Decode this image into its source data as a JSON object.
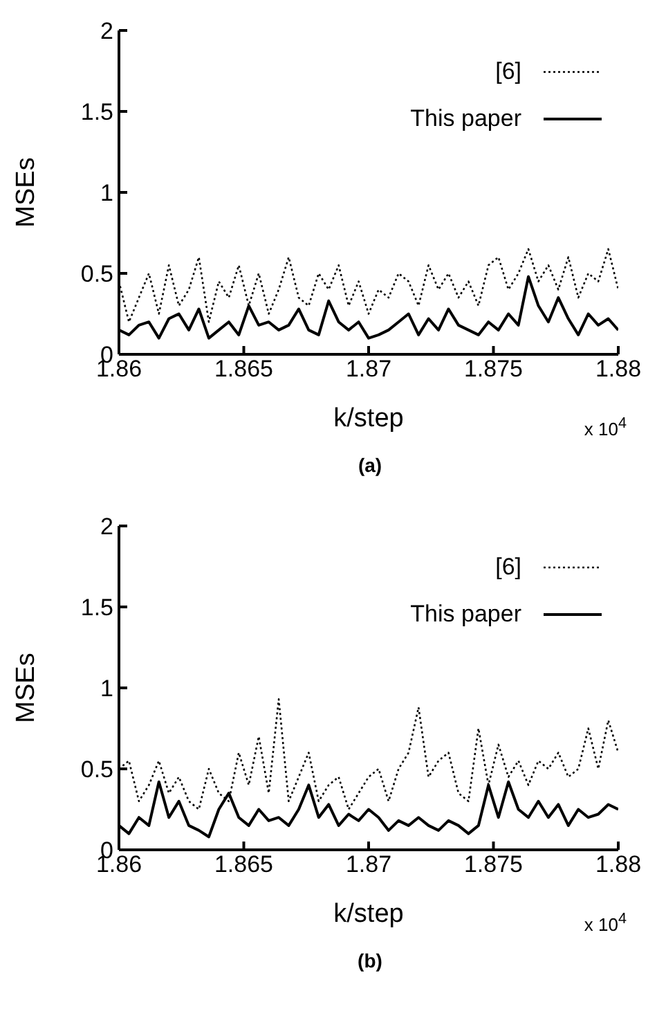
{
  "chart_data": [
    {
      "type": "line",
      "title": "(a)",
      "xlabel": "k/step",
      "ylabel": "MSEs",
      "annotations": [
        "x 10$^{4}$"
      ],
      "x": [
        1.86,
        1.8604,
        1.8608,
        1.8612,
        1.8616,
        1.862,
        1.8624,
        1.8628,
        1.8632,
        1.8636,
        1.864,
        1.8644,
        1.8648,
        1.8652,
        1.8656,
        1.866,
        1.8664,
        1.8668,
        1.8672,
        1.8676,
        1.868,
        1.8684,
        1.8688,
        1.8692,
        1.8696,
        1.87,
        1.8704,
        1.8708,
        1.8712,
        1.8716,
        1.872,
        1.8724,
        1.8728,
        1.8732,
        1.8736,
        1.874,
        1.8744,
        1.8748,
        1.8752,
        1.8756,
        1.876,
        1.8764,
        1.8768,
        1.8772,
        1.8776,
        1.878,
        1.8784,
        1.8788,
        1.8792,
        1.8796,
        1.88
      ],
      "xlim": [
        1.86,
        1.88
      ],
      "xticks": [
        1.86,
        1.865,
        1.87,
        1.875,
        1.88
      ],
      "ylim": [
        0,
        2
      ],
      "yticks": [
        0,
        0.5,
        1,
        1.5,
        2
      ],
      "legend": "top right",
      "marker": "none",
      "series": [
        {
          "name": "[6]",
          "color": "#000000",
          "line_style": "dotted",
          "values": [
            0.45,
            0.2,
            0.35,
            0.5,
            0.25,
            0.55,
            0.3,
            0.4,
            0.6,
            0.2,
            0.45,
            0.35,
            0.55,
            0.3,
            0.5,
            0.25,
            0.4,
            0.6,
            0.35,
            0.3,
            0.5,
            0.4,
            0.55,
            0.3,
            0.45,
            0.25,
            0.4,
            0.35,
            0.5,
            0.45,
            0.3,
            0.55,
            0.4,
            0.5,
            0.35,
            0.45,
            0.3,
            0.55,
            0.6,
            0.4,
            0.5,
            0.65,
            0.45,
            0.55,
            0.4,
            0.6,
            0.35,
            0.5,
            0.45,
            0.65,
            0.4
          ]
        },
        {
          "name": "This paper",
          "color": "#000000",
          "line_style": "solid",
          "values": [
            0.15,
            0.12,
            0.18,
            0.2,
            0.1,
            0.22,
            0.25,
            0.15,
            0.28,
            0.1,
            0.15,
            0.2,
            0.12,
            0.3,
            0.18,
            0.2,
            0.15,
            0.18,
            0.28,
            0.15,
            0.12,
            0.33,
            0.2,
            0.15,
            0.2,
            0.1,
            0.12,
            0.15,
            0.2,
            0.25,
            0.12,
            0.22,
            0.15,
            0.28,
            0.18,
            0.15,
            0.12,
            0.2,
            0.15,
            0.25,
            0.18,
            0.48,
            0.3,
            0.2,
            0.35,
            0.22,
            0.12,
            0.25,
            0.18,
            0.22,
            0.15
          ]
        }
      ]
    },
    {
      "type": "line",
      "title": "(b)",
      "xlabel": "k/step",
      "ylabel": "MSEs",
      "annotations": [
        "x 10$^{4}$"
      ],
      "x": [
        1.86,
        1.8604,
        1.8608,
        1.8612,
        1.8616,
        1.862,
        1.8624,
        1.8628,
        1.8632,
        1.8636,
        1.864,
        1.8644,
        1.8648,
        1.8652,
        1.8656,
        1.866,
        1.8664,
        1.8668,
        1.8672,
        1.8676,
        1.868,
        1.8684,
        1.8688,
        1.8692,
        1.8696,
        1.87,
        1.8704,
        1.8708,
        1.8712,
        1.8716,
        1.872,
        1.8724,
        1.8728,
        1.8732,
        1.8736,
        1.874,
        1.8744,
        1.8748,
        1.8752,
        1.8756,
        1.876,
        1.8764,
        1.8768,
        1.8772,
        1.8776,
        1.878,
        1.8784,
        1.8788,
        1.8792,
        1.8796,
        1.88
      ],
      "xlim": [
        1.86,
        1.88
      ],
      "xticks": [
        1.86,
        1.865,
        1.87,
        1.875,
        1.88
      ],
      "ylim": [
        0,
        2
      ],
      "yticks": [
        0,
        0.5,
        1,
        1.5,
        2
      ],
      "legend": "top right",
      "marker": "none",
      "series": [
        {
          "name": "[6]",
          "color": "#000000",
          "line_style": "dotted",
          "values": [
            0.5,
            0.55,
            0.3,
            0.4,
            0.55,
            0.35,
            0.45,
            0.3,
            0.25,
            0.5,
            0.35,
            0.3,
            0.6,
            0.4,
            0.7,
            0.35,
            0.93,
            0.3,
            0.45,
            0.6,
            0.3,
            0.4,
            0.45,
            0.25,
            0.35,
            0.45,
            0.5,
            0.3,
            0.5,
            0.6,
            0.88,
            0.45,
            0.55,
            0.6,
            0.35,
            0.3,
            0.75,
            0.4,
            0.65,
            0.45,
            0.55,
            0.4,
            0.55,
            0.5,
            0.6,
            0.45,
            0.5,
            0.75,
            0.5,
            0.8,
            0.6
          ]
        },
        {
          "name": "This paper",
          "color": "#000000",
          "line_style": "solid",
          "values": [
            0.15,
            0.1,
            0.2,
            0.15,
            0.42,
            0.2,
            0.3,
            0.15,
            0.12,
            0.08,
            0.25,
            0.35,
            0.2,
            0.15,
            0.25,
            0.18,
            0.2,
            0.15,
            0.25,
            0.4,
            0.2,
            0.28,
            0.15,
            0.22,
            0.18,
            0.25,
            0.2,
            0.12,
            0.18,
            0.15,
            0.2,
            0.15,
            0.12,
            0.18,
            0.15,
            0.1,
            0.15,
            0.4,
            0.2,
            0.42,
            0.25,
            0.2,
            0.3,
            0.2,
            0.28,
            0.15,
            0.25,
            0.2,
            0.22,
            0.28,
            0.25
          ]
        }
      ]
    }
  ]
}
